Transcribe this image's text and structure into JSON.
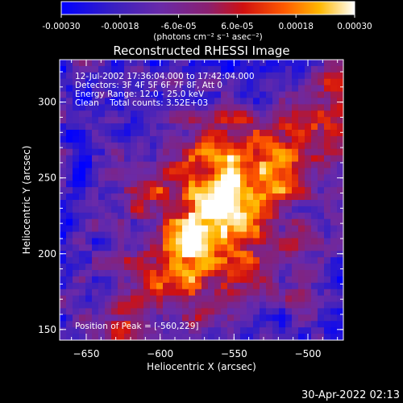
{
  "colorbar": {
    "ticks": [
      "-0.00030",
      "-0.00018",
      "-6.0e-05",
      "6.0e-05",
      "0.00018",
      "0.00030"
    ],
    "tick_values": [
      -0.0003,
      -0.00018,
      -6e-05,
      6e-05,
      0.00018,
      0.0003
    ],
    "range": [
      -0.0003,
      0.0003
    ],
    "unit_label": "(photons cm⁻² s⁻¹ asec⁻²)"
  },
  "annotations": {
    "time_range": "12-Jul-2002 17:36:04.000 to 17:42:04.000",
    "detectors": "Detectors: 3F 4F 5F 6F 7F 8F, Att 0",
    "energy": "Energy Range: 12.0 - 25.0 keV",
    "clean": "Clean    Total counts: 3.52E+03",
    "peak": "Position of Peak = [-560,229]"
  },
  "footer_timestamp": "30-Apr-2022 02:13",
  "chart_data": {
    "type": "heatmap",
    "title": "Reconstructed RHESSI Image",
    "xlabel": "Heliocentric X (arcsec)",
    "ylabel": "Heliocentric Y (arcsec)",
    "xlim": [
      -668,
      -476
    ],
    "ylim": [
      143,
      328
    ],
    "x_ticks": [
      -650,
      -600,
      -550,
      -500
    ],
    "x_tick_labels": [
      "−650",
      "−600",
      "−550",
      "−500"
    ],
    "y_ticks": [
      150,
      200,
      250,
      300
    ],
    "y_tick_labels": [
      "150",
      "200",
      "250",
      "300"
    ],
    "peak": [
      -560,
      229
    ],
    "colormap": "blue-purple-red-orange-yellow-white",
    "grid": false
  }
}
